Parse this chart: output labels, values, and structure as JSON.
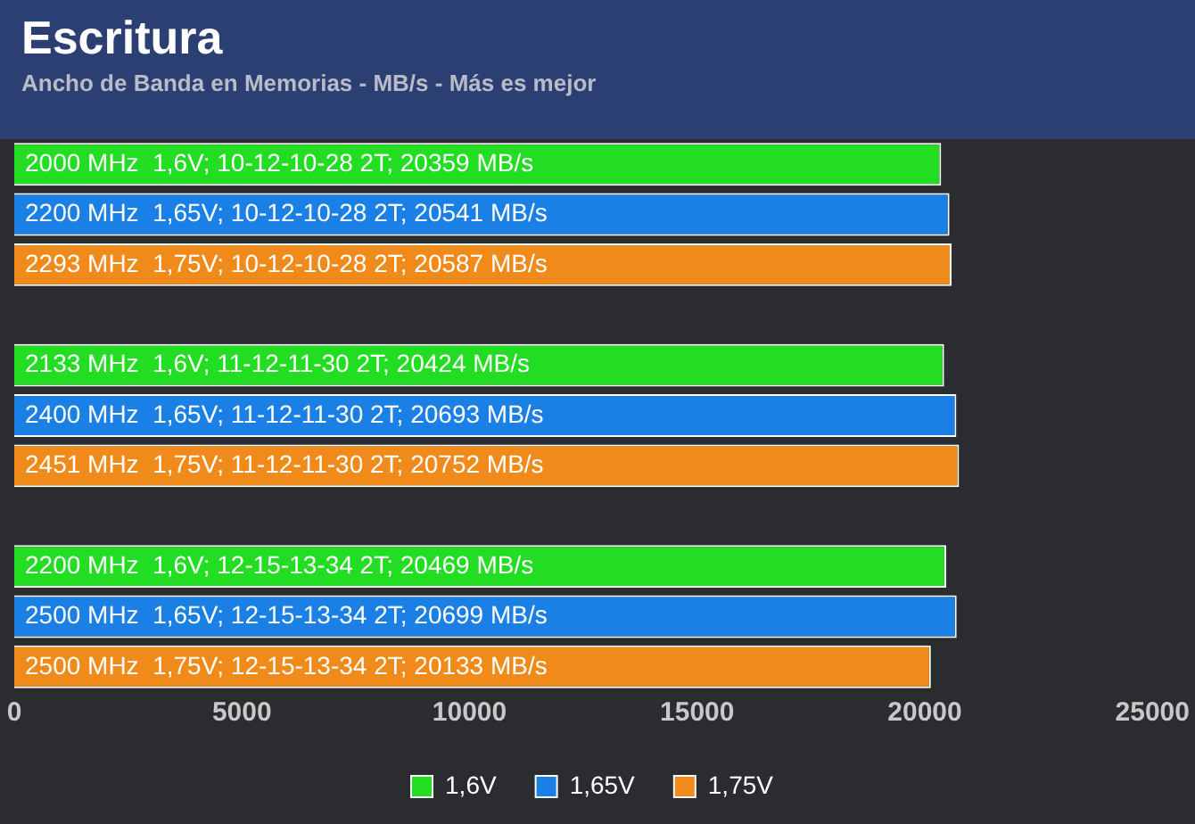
{
  "chart_data": {
    "type": "bar",
    "orientation": "horizontal",
    "stacked": true,
    "title": "Escritura",
    "subtitle": "Ancho de Banda en Memorias - MB/s - Más es mejor",
    "categories": [
      "2000 MHz  1,6V; 10-12-10-28 2T; 20359 MB/s",
      "2200 MHz  1,65V; 10-12-10-28 2T; 20541 MB/s",
      "2293 MHz  1,75V; 10-12-10-28 2T; 20587 MB/s",
      null,
      "2133 MHz  1,6V; 11-12-11-30 2T; 20424 MB/s",
      "2400 MHz  1,65V; 11-12-11-30 2T; 20693 MB/s",
      "2451 MHz  1,75V; 11-12-11-30 2T; 20752 MB/s",
      null,
      "2200 MHz  1,6V; 12-15-13-34 2T; 20469 MB/s",
      "2500 MHz  1,65V; 12-15-13-34 2T; 20699 MB/s",
      "2500 MHz  1,75V; 12-15-13-34 2T; 20133 MB/s"
    ],
    "series": [
      {
        "name": "1,6V",
        "color": "#22dd22",
        "values": [
          20359,
          null,
          null,
          null,
          20424,
          null,
          null,
          null,
          20469,
          null,
          null
        ]
      },
      {
        "name": "1,65V",
        "color": "#1a80e6",
        "values": [
          null,
          20541,
          null,
          null,
          null,
          20693,
          null,
          null,
          null,
          20699,
          null
        ]
      },
      {
        "name": "1,75V",
        "color": "#f08a1a",
        "values": [
          null,
          null,
          20587,
          null,
          null,
          null,
          20752,
          null,
          null,
          null,
          20133
        ]
      }
    ],
    "xlim": [
      0,
      25000
    ],
    "xticks": [
      0,
      5000,
      10000,
      15000,
      20000,
      25000
    ],
    "grid": false,
    "legend": "bottom"
  }
}
